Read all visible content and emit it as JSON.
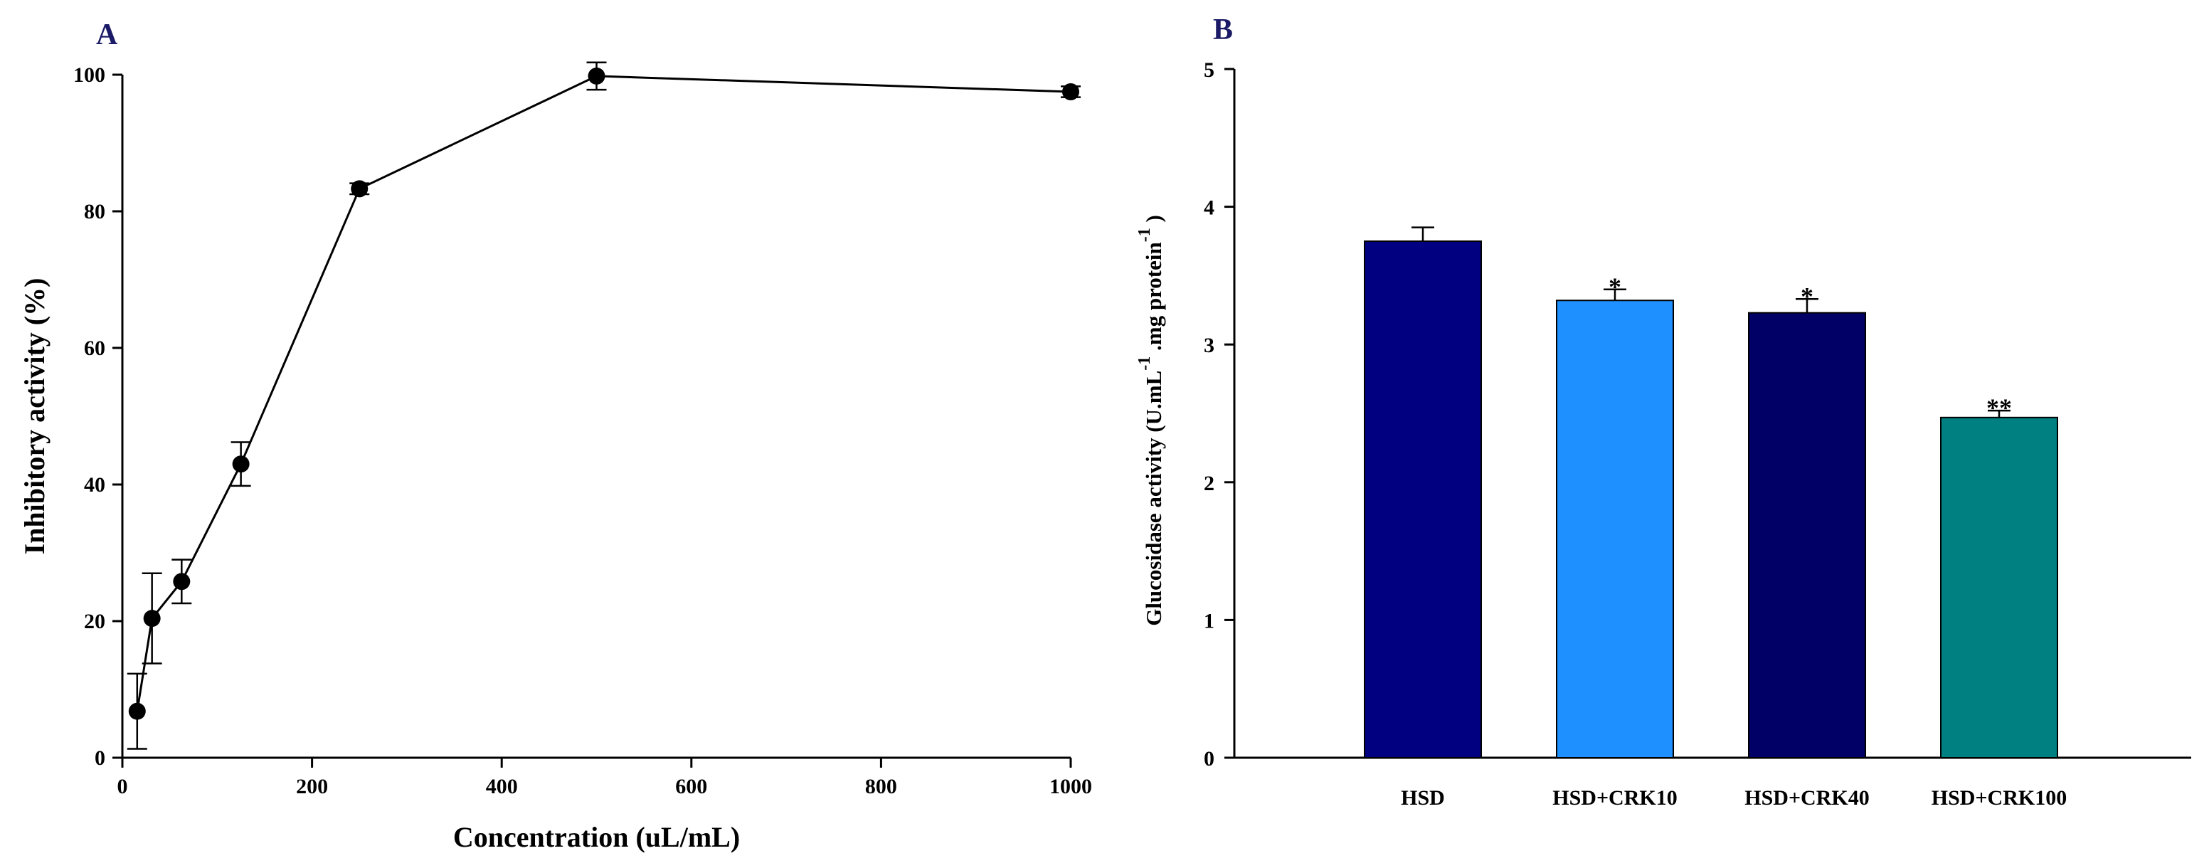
{
  "panels": {
    "a_letter": "A",
    "b_letter": "B"
  },
  "chart_data": [
    {
      "type": "line",
      "panel": "A",
      "xlabel": "Concentration (uL/mL)",
      "ylabel": "Inhibitory activity (%)",
      "xlim": [
        0,
        1000
      ],
      "ylim": [
        0,
        100
      ],
      "xticks": [
        0,
        200,
        400,
        600,
        800,
        1000
      ],
      "yticks": [
        0,
        20,
        40,
        60,
        80,
        100
      ],
      "series": [
        {
          "x": [
            15.6,
            31.25,
            62.5,
            125,
            250,
            500,
            1000
          ],
          "y": [
            6.8,
            20.4,
            25.8,
            43.0,
            83.3,
            99.8,
            97.5
          ],
          "error": [
            5.5,
            6.6,
            3.2,
            3.2,
            0.8,
            2.0,
            0.8
          ],
          "color": "#000000"
        }
      ],
      "grid": false
    },
    {
      "type": "bar",
      "panel": "B",
      "ylabel": "Glucosidase activity (U.mL^-1.mg protein^-1)",
      "ylim": [
        0,
        5
      ],
      "yticks": [
        0,
        1,
        2,
        3,
        4,
        5
      ],
      "categories": [
        "HSD",
        "HSD+CRK10",
        "HSD+CRK40",
        "HSD+CRK100"
      ],
      "values": [
        3.75,
        3.32,
        3.23,
        2.47
      ],
      "errors": [
        0.1,
        0.08,
        0.1,
        0.05
      ],
      "significance": [
        "",
        "*",
        "*",
        "**"
      ],
      "colors": [
        "#000080",
        "#1E90FF",
        "#000066",
        "#008080"
      ],
      "grid": false
    }
  ]
}
